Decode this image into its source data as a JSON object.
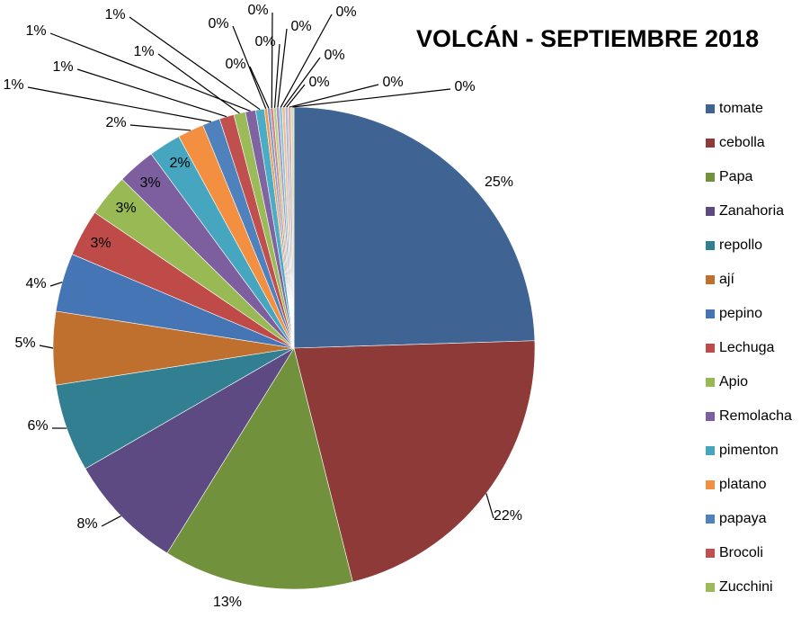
{
  "chart_data": {
    "type": "pie",
    "title": "VOLCÁN - SEPTIEMBRE 2018",
    "categories": [
      "tomate",
      "cebolla",
      "Papa",
      "Zanahoria",
      "repollo",
      "ají",
      "pepino",
      "Lechuga",
      "Apio",
      "Remolacha",
      "pimenton",
      "platano",
      "papaya",
      "Brocoli",
      "Zucchini",
      null,
      null,
      null,
      null,
      null,
      null,
      null,
      null,
      null,
      null,
      null,
      null
    ],
    "values": [
      25,
      22,
      13,
      8,
      6,
      5,
      4,
      3.2,
      2.9,
      2.6,
      2.2,
      1.8,
      1.2,
      1.0,
      0.8,
      0.7,
      0.6,
      0.2,
      0.2,
      0.2,
      0.2,
      0.2,
      0.2,
      0.2,
      0.2,
      0.2,
      0.2
    ],
    "value_labels": [
      "25%",
      "22%",
      "13%",
      "8%",
      "6%",
      "5%",
      "4%",
      "3%",
      "3%",
      "3%",
      "2%",
      "2%",
      "1%",
      "1%",
      "1%",
      "1%",
      "1%",
      "0%",
      "0%",
      "0%",
      "0%",
      "0%",
      "0%",
      "0%",
      "0%",
      "0%",
      "0%"
    ],
    "colors": [
      "#3f6392",
      "#8e3a38",
      "#72913c",
      "#5d4a82",
      "#317f91",
      "#bf6f2e",
      "#4675b5",
      "#be4b48",
      "#98b954",
      "#7d5fa0",
      "#46a5bf",
      "#f38f41",
      "#4f81bd",
      "#c0504d",
      "#9bbb59",
      "#8064a2",
      "#4bacc6",
      "#f79646",
      "#7a9fcf",
      "#d68684",
      "#b8d08a",
      "#a593c0",
      "#86c7da",
      "#fab98a",
      "#a8c0e0",
      "#e2acab",
      "#cfdeb3"
    ],
    "legend": "right"
  }
}
